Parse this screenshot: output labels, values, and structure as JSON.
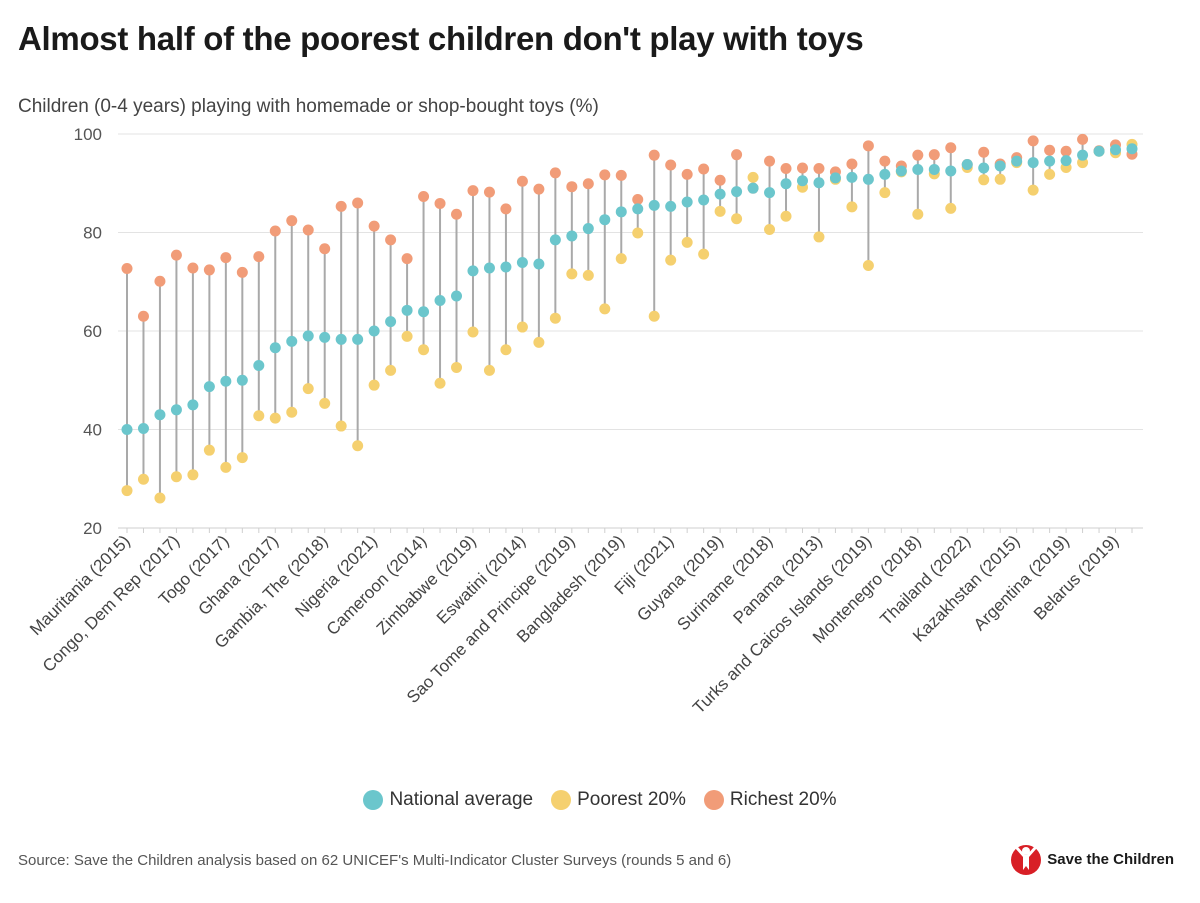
{
  "title": "Almost half of the poorest children don't play with toys",
  "subtitle": "Children (0-4 years) playing with homemade or shop-bought toys (%)",
  "source": "Source: Save the Children analysis based on 62 UNICEF's Multi-Indicator Cluster Surveys (rounds 5 and 6)",
  "logo_text": "Save the Children",
  "legend": [
    {
      "label": "National average",
      "color": "#6bc6cc"
    },
    {
      "label": "Poorest 20%",
      "color": "#f5d06f"
    },
    {
      "label": "Richest 20%",
      "color": "#f19c78"
    }
  ],
  "chart_data": {
    "type": "scatter",
    "title": "Almost half of the poorest children don't play with toys",
    "ylabel": "Children (0-4 years) playing with homemade or shop-bought toys (%)",
    "ylim": [
      20,
      100
    ],
    "yticks": [
      20,
      40,
      60,
      80,
      100
    ],
    "grid": true,
    "legend_position": "bottom",
    "x_labels_shown": [
      "Mauritania (2015)",
      "Congo, Dem Rep (2017)",
      "Togo (2017)",
      "Ghana (2017)",
      "Gambia, The (2018)",
      "Nigeria (2021)",
      "Cameroon (2014)",
      "Zimbabwe (2019)",
      "Eswatini (2014)",
      "Sao Tome and Principe (2019)",
      "Bangladesh (2019)",
      "Fiji (2021)",
      "Guyana (2019)",
      "Suriname (2018)",
      "Panama (2013)",
      "Turks and Caicos Islands (2019)",
      "Montenegro (2018)",
      "Thailand (2022)",
      "Kazakhstan (2015)",
      "Argentina (2019)",
      "Belarus (2019)"
    ],
    "x_label_positions": [
      1,
      4,
      7,
      10,
      13,
      16,
      19,
      22,
      25,
      28,
      31,
      34,
      37,
      40,
      43,
      46,
      49,
      52,
      55,
      58,
      61
    ],
    "n_points": 62,
    "series": [
      {
        "name": "National average",
        "color": "#6bc6cc",
        "values": [
          40,
          40.2,
          43,
          44,
          45,
          48.7,
          49.8,
          50,
          53,
          56.6,
          57.9,
          59,
          58.7,
          58.3,
          58.3,
          60,
          61.9,
          64.2,
          63.9,
          66.2,
          67.1,
          72.2,
          72.8,
          73,
          73.9,
          73.6,
          78.5,
          79.3,
          80.8,
          82.6,
          84.2,
          84.8,
          85.5,
          85.3,
          86.2,
          86.6,
          87.8,
          88.3,
          89,
          88.1,
          89.9,
          90.5,
          90.1,
          91.1,
          91.2,
          90.8,
          91.8,
          92.5,
          92.8,
          92.8,
          92.5,
          93.8,
          93.1,
          93.5,
          94.5,
          94.2,
          94.5,
          94.6,
          95.7,
          96.5,
          96.8,
          97
        ]
      },
      {
        "name": "Poorest 20%",
        "color": "#f5d06f",
        "values": [
          27.6,
          29.9,
          26.1,
          30.4,
          30.8,
          35.8,
          32.3,
          34.3,
          42.8,
          42.3,
          43.5,
          48.3,
          45.3,
          40.7,
          36.7,
          49,
          52,
          58.9,
          56.2,
          49.4,
          52.6,
          59.8,
          52,
          56.2,
          60.8,
          57.7,
          62.6,
          71.6,
          71.3,
          64.5,
          74.7,
          79.9,
          63,
          74.4,
          78,
          75.6,
          84.3,
          82.8,
          91.2,
          80.6,
          83.3,
          89.2,
          79.1,
          90.8,
          85.2,
          73.3,
          88.1,
          92.3,
          83.7,
          91.9,
          84.9,
          93.2,
          90.7,
          90.8,
          94.2,
          88.6,
          91.8,
          93.2,
          94.2,
          96.5,
          96.2,
          97.9
        ]
      },
      {
        "name": "Richest 20%",
        "color": "#f19c78",
        "values": [
          72.7,
          63,
          70.1,
          75.4,
          72.8,
          72.4,
          74.9,
          71.9,
          75.1,
          80.3,
          82.4,
          80.5,
          76.7,
          85.3,
          86,
          81.3,
          78.5,
          74.7,
          87.3,
          85.9,
          83.7,
          88.5,
          88.2,
          84.8,
          90.4,
          88.8,
          92.1,
          89.3,
          89.9,
          91.7,
          91.6,
          86.7,
          95.7,
          93.7,
          91.8,
          92.9,
          90.6,
          95.8,
          89,
          94.5,
          93,
          93.1,
          93,
          92.3,
          93.9,
          97.6,
          94.5,
          93.5,
          95.7,
          95.8,
          97.2,
          93.8,
          96.3,
          93.9,
          95.2,
          98.6,
          96.7,
          96.5,
          98.9,
          96.6,
          97.8,
          95.9
        ]
      }
    ]
  }
}
